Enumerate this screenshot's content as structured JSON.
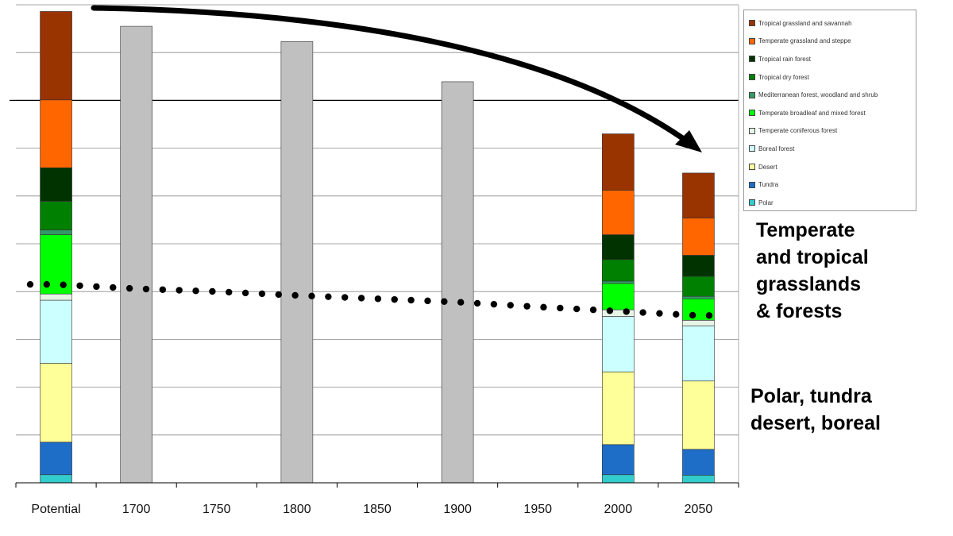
{
  "annotations": {
    "upper_label": "Temperate\nand tropical\ngrasslands\n& forests",
    "lower_label": "Polar, tundra\ndesert, boreal"
  },
  "colors": {
    "grey_bar": "#c0c0c0",
    "arrow": "#000000",
    "trend": "#000000"
  },
  "chart_data": {
    "type": "bar",
    "stacked": true,
    "categories": [
      "Potential",
      "1700",
      "1750",
      "1800",
      "1850",
      "1900",
      "1950",
      "2000",
      "2050"
    ],
    "ylim": [
      0,
      100
    ],
    "grid": "horizontal",
    "legend_position": "right",
    "series": [
      {
        "name": "Polar",
        "color": "#33cccc",
        "values": [
          1.7,
          null,
          null,
          null,
          null,
          null,
          null,
          1.7,
          1.6
        ]
      },
      {
        "name": "Tundra",
        "color": "#1e6ec8",
        "values": [
          6.8,
          null,
          null,
          null,
          null,
          null,
          null,
          6.3,
          5.4
        ]
      },
      {
        "name": "Desert",
        "color": "#ffff99",
        "values": [
          16.5,
          null,
          null,
          null,
          null,
          null,
          null,
          15.2,
          14.3
        ]
      },
      {
        "name": "Boreal forest",
        "color": "#ccffff",
        "values": [
          13.2,
          null,
          null,
          null,
          null,
          null,
          null,
          11.6,
          11.5
        ]
      },
      {
        "name": "Temperate coniferous forest",
        "color": "#e6f5e6",
        "values": [
          1.3,
          null,
          null,
          null,
          null,
          null,
          null,
          1.4,
          1.2
        ]
      },
      {
        "name": "Temperate broadleaf and mixed forest",
        "color": "#00ff00",
        "values": [
          12.4,
          null,
          null,
          null,
          null,
          null,
          null,
          5.5,
          4.5
        ]
      },
      {
        "name": "Mediterranean forest, woodland and shrub",
        "color": "#339966",
        "values": [
          1.0,
          null,
          null,
          null,
          null,
          null,
          null,
          0.5,
          0.5
        ]
      },
      {
        "name": "Tropical dry forest",
        "color": "#008000",
        "values": [
          6.0,
          null,
          null,
          null,
          null,
          null,
          null,
          4.5,
          4.2
        ]
      },
      {
        "name": "Tropical rain forest",
        "color": "#003300",
        "values": [
          7.0,
          null,
          null,
          null,
          null,
          null,
          null,
          5.2,
          4.4
        ]
      },
      {
        "name": "Temperate grassland and steppe",
        "color": "#ff6600",
        "values": [
          14.2,
          null,
          null,
          null,
          null,
          null,
          null,
          9.3,
          7.8
        ]
      },
      {
        "name": "Tropical grassland and savannah",
        "color": "#993300",
        "values": [
          18.5,
          null,
          null,
          null,
          null,
          null,
          null,
          11.8,
          9.4
        ]
      },
      {
        "name": "",
        "color": "#c0c0c0",
        "values": [
          null,
          95.5,
          null,
          92.3,
          null,
          83.9,
          null,
          null,
          null
        ]
      }
    ],
    "trend_line": {
      "style": "dotted",
      "values": [
        41.5,
        40.6,
        40.0,
        39.2,
        38.5,
        37.8,
        36.8,
        35.9,
        35.0
      ]
    },
    "arrow": {
      "from": "Potential",
      "to": "2050"
    }
  }
}
